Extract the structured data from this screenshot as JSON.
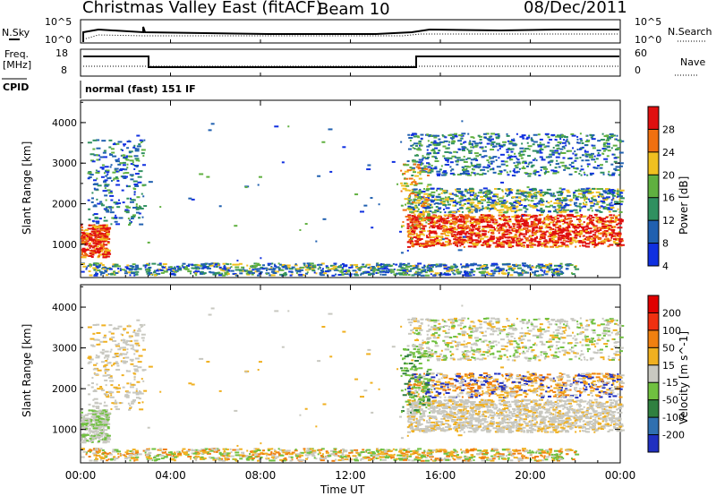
{
  "header": {
    "title": "Christmas Valley East (fitACF)",
    "beam": "Beam 10",
    "date": "08/Dec/2011"
  },
  "top_panel": {
    "left_label": "N.Sky",
    "left_ticks": [
      "10^5",
      "10^0"
    ],
    "right_label": "N.Search",
    "right_ticks": [
      "10^5",
      "10^0"
    ]
  },
  "freq_panel": {
    "left_label_1": "Freq.",
    "left_label_2": "[MHz]",
    "left_ticks": [
      "18",
      "8"
    ],
    "right_label": "Nave",
    "right_ticks": [
      "60",
      "0"
    ],
    "cpid_label": "CPID",
    "mode_text": "normal (fast) 151 IF"
  },
  "chart_data": [
    {
      "type": "heatmap",
      "name": "power",
      "ylabel": "Slant Range [km]",
      "yticks": [
        1000,
        2000,
        3000,
        4000
      ],
      "ylim": [
        180,
        4550
      ],
      "colorbar_label": "Power [dB]",
      "colorbar_ticks": [
        "4",
        "8",
        "12",
        "16",
        "20",
        "24",
        "28"
      ],
      "colorbar_colors": [
        "#1030e0",
        "#2060b0",
        "#309060",
        "#60b040",
        "#f0c020",
        "#f07010",
        "#e01010"
      ],
      "xticks": [
        "00:00",
        "04:00",
        "08:00",
        "12:00",
        "16:00",
        "20:00",
        "00:00"
      ],
      "xlabel": "Time UT"
    },
    {
      "type": "heatmap",
      "name": "velocity",
      "ylabel": "Slant Range [km]",
      "yticks": [
        1000,
        2000,
        3000,
        4000
      ],
      "ylim": [
        180,
        4550
      ],
      "colorbar_label": "Velocity [m s^-1]",
      "colorbar_ticks": [
        "200",
        "100",
        "50",
        "15",
        "-15",
        "-50",
        "-100",
        "-200"
      ],
      "colorbar_colors": [
        "#2030c0",
        "#3070b0",
        "#308040",
        "#70c040",
        "#c8c8c0",
        "#f0b020",
        "#f08010",
        "#f03010",
        "#e00000"
      ],
      "xticks": [
        "00:00",
        "04:00",
        "08:00",
        "12:00",
        "16:00",
        "20:00",
        "00:00"
      ],
      "xlabel": "Time UT"
    }
  ]
}
